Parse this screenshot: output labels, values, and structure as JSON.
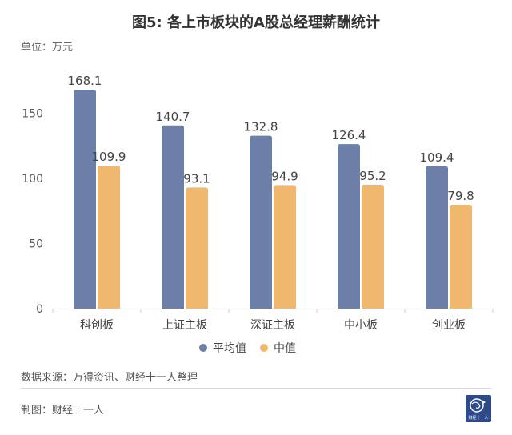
{
  "header": {
    "title": "图5: 各上市板块的A股总经理薪酬统计",
    "unit": "单位：万元"
  },
  "footer": {
    "source": "数据来源：万得资讯、财经十一人整理",
    "maker": "制图：财经十一人",
    "logo_text": "财经十一人"
  },
  "chart_data": {
    "type": "bar",
    "categories": [
      "科创板",
      "上证主板",
      "深证主板",
      "中小板",
      "创业板"
    ],
    "series": [
      {
        "name": "平均值",
        "color": "#6b7fa8",
        "values": [
          168.1,
          140.7,
          132.8,
          126.4,
          109.4
        ]
      },
      {
        "name": "中值",
        "color": "#f0b86e",
        "values": [
          109.9,
          93.1,
          94.9,
          95.2,
          79.8
        ]
      }
    ],
    "yticks": [
      0,
      50,
      100,
      150
    ],
    "ylim": [
      0,
      178
    ],
    "grid": false,
    "legend_position": "bottom"
  }
}
